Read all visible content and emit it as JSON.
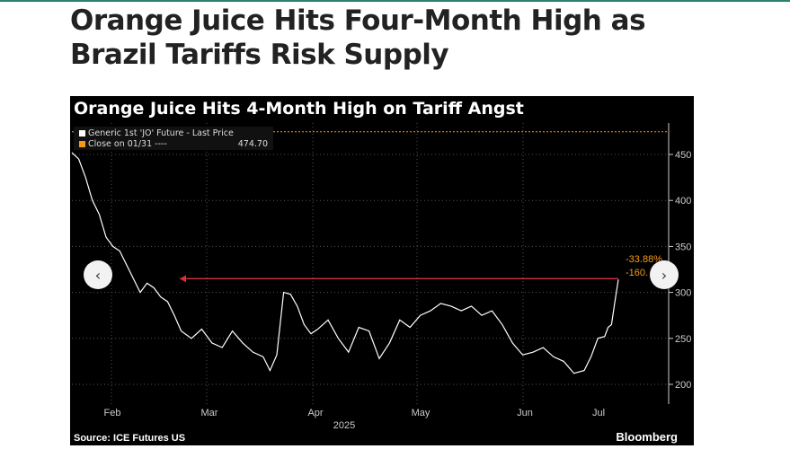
{
  "headline": "Orange Juice Hits Four-Month High as Brazil Tariffs Risk Supply",
  "chart_data": {
    "type": "line",
    "title": "Orange Juice Hits 4-Month High on Tariff Angst",
    "legend": [
      {
        "label": "Generic 1st 'JO' Future - Last Price",
        "color": "#ffffff"
      },
      {
        "label": "Close on 01/31 ----",
        "value": "474.70",
        "color": "#f59b1a"
      }
    ],
    "reference_line": 474.7,
    "annotations": {
      "pct_change": "-33.88%",
      "abs_change": "-160."
    },
    "x_tick_labels": [
      "Feb",
      "Mar",
      "Apr",
      "May",
      "Jun",
      "Jul"
    ],
    "x_year_label": "2025",
    "y_ticks": [
      200,
      250,
      300,
      350,
      400,
      450
    ],
    "ylim": [
      180,
      480
    ],
    "x_days": [
      0,
      2,
      4,
      6,
      8,
      10,
      12,
      14,
      16,
      18,
      20,
      22,
      24,
      26,
      28,
      30,
      32,
      35,
      38,
      41,
      44,
      47,
      50,
      53,
      56,
      58,
      60,
      62,
      64,
      66,
      68,
      70,
      72,
      75,
      78,
      81,
      84,
      87,
      90,
      93,
      96,
      99,
      102,
      105,
      108,
      111,
      114,
      117,
      120,
      123,
      126,
      129,
      132,
      135,
      138,
      141,
      144,
      147,
      150,
      152,
      154,
      156,
      157,
      158,
      159,
      160
    ],
    "values": [
      452,
      445,
      425,
      400,
      385,
      360,
      350,
      345,
      330,
      315,
      300,
      310,
      305,
      295,
      290,
      275,
      258,
      250,
      260,
      245,
      240,
      258,
      245,
      235,
      230,
      215,
      232,
      300,
      298,
      285,
      265,
      255,
      260,
      270,
      250,
      235,
      262,
      258,
      228,
      245,
      270,
      262,
      275,
      280,
      288,
      285,
      280,
      285,
      275,
      280,
      265,
      245,
      232,
      235,
      240,
      230,
      225,
      212,
      215,
      230,
      250,
      252,
      262,
      265,
      290,
      313.95
    ],
    "source": "Source: ICE Futures US",
    "brand": "Bloomberg"
  },
  "nav": {
    "prev": "‹",
    "next": "›"
  }
}
